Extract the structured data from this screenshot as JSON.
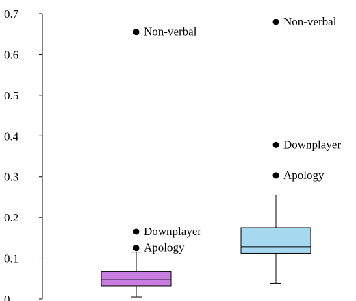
{
  "chart_data": {
    "type": "box",
    "title": "",
    "xlabel": "",
    "ylabel": "",
    "ylim": [
      0,
      0.7
    ],
    "yticks": [
      {
        "value": 0,
        "label": "0"
      },
      {
        "value": 0.1,
        "label": "0.1"
      },
      {
        "value": 0.2,
        "label": "0.2"
      },
      {
        "value": 0.3,
        "label": "0.3"
      },
      {
        "value": 0.4,
        "label": "0.4"
      },
      {
        "value": 0.5,
        "label": "0.5"
      },
      {
        "value": 0.6,
        "label": "0.6"
      },
      {
        "value": 0.7,
        "label": "0.7"
      }
    ],
    "grid": false,
    "series": [
      {
        "color": "#c77ee0",
        "whisker_low": 0.005,
        "q1": 0.032,
        "median": 0.047,
        "q3": 0.068,
        "whisker_high": 0.115,
        "outliers": [
          {
            "value": 0.655,
            "label": "Non-verbal"
          },
          {
            "value": 0.165,
            "label": "Downplayer"
          },
          {
            "value": 0.125,
            "label": "Apology"
          }
        ]
      },
      {
        "color": "#a6d8f0",
        "whisker_low": 0.038,
        "q1": 0.112,
        "median": 0.128,
        "q3": 0.175,
        "whisker_high": 0.255,
        "outliers": [
          {
            "value": 0.68,
            "label": "Non-verbal"
          },
          {
            "value": 0.378,
            "label": "Downplayer"
          },
          {
            "value": 0.303,
            "label": "Apology"
          }
        ]
      }
    ]
  }
}
